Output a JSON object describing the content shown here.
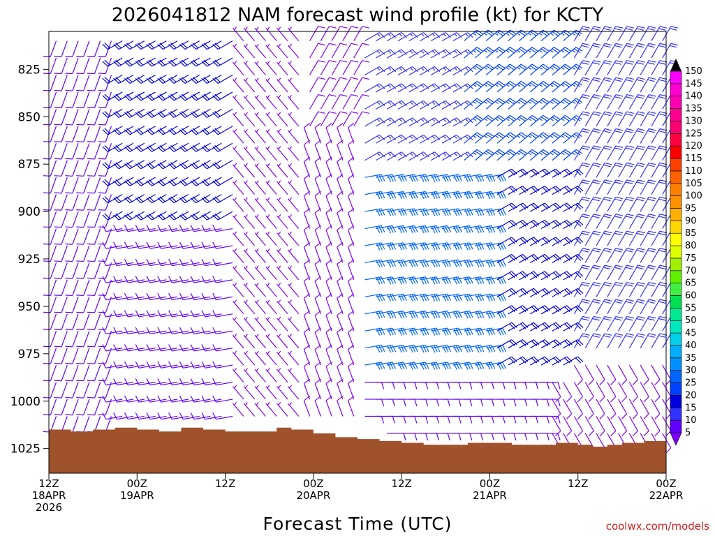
{
  "chart_data": {
    "type": "wind-barb-time-height",
    "title": "2026041812 NAM forecast wind profile (kt) for KCTY",
    "xlabel": "Forecast Time (UTC)",
    "ylabel": "",
    "y_axis": {
      "scale": "linear",
      "ticks": [
        825,
        850,
        875,
        900,
        925,
        950,
        975,
        1000,
        1025
      ],
      "range": [
        1038,
        805
      ]
    },
    "x_axis": {
      "range_hours": [
        0,
        84
      ],
      "step_hours": 3,
      "ticks": [
        {
          "h": 0,
          "lines": [
            "12Z",
            "18APR",
            "2026"
          ]
        },
        {
          "h": 12,
          "lines": [
            "00Z",
            "19APR"
          ]
        },
        {
          "h": 24,
          "lines": [
            "12Z"
          ]
        },
        {
          "h": 36,
          "lines": [
            "00Z",
            "20APR"
          ]
        },
        {
          "h": 48,
          "lines": [
            "12Z"
          ]
        },
        {
          "h": 60,
          "lines": [
            "00Z",
            "21APR"
          ]
        },
        {
          "h": 72,
          "lines": [
            "12Z"
          ]
        },
        {
          "h": 84,
          "lines": [
            "00Z",
            "22APR"
          ]
        }
      ]
    },
    "colorbar": {
      "levels": [
        5,
        10,
        15,
        20,
        25,
        30,
        35,
        40,
        45,
        50,
        55,
        60,
        65,
        70,
        75,
        80,
        85,
        90,
        95,
        100,
        105,
        110,
        115,
        120,
        125,
        130,
        135,
        140,
        145,
        150
      ],
      "colors": [
        "#8000ff",
        "#6000ff",
        "#3030ff",
        "#0000e0",
        "#0040ff",
        "#0064ff",
        "#0090ff",
        "#00b0ff",
        "#00d0e8",
        "#00e8c0",
        "#00e890",
        "#00e050",
        "#40f040",
        "#60f000",
        "#a0f000",
        "#e0ff00",
        "#ffff00",
        "#ffd800",
        "#ffb000",
        "#ff9000",
        "#ff8000",
        "#ff6000",
        "#ff4000",
        "#ff0000",
        "#ff0040",
        "#ff0070",
        "#ff0090",
        "#ff00b0",
        "#ff00d0",
        "#ff00ff"
      ]
    },
    "surface_pressure": [
      {
        "h": 0,
        "p": 1015
      },
      {
        "h": 3,
        "p": 1016
      },
      {
        "h": 6,
        "p": 1015
      },
      {
        "h": 9,
        "p": 1014
      },
      {
        "h": 12,
        "p": 1015
      },
      {
        "h": 15,
        "p": 1016
      },
      {
        "h": 18,
        "p": 1014
      },
      {
        "h": 21,
        "p": 1015
      },
      {
        "h": 24,
        "p": 1016
      },
      {
        "h": 27,
        "p": 1016
      },
      {
        "h": 30,
        "p": 1016
      },
      {
        "h": 31,
        "p": 1014
      },
      {
        "h": 33,
        "p": 1015
      },
      {
        "h": 36,
        "p": 1017
      },
      {
        "h": 39,
        "p": 1019
      },
      {
        "h": 42,
        "p": 1020
      },
      {
        "h": 45,
        "p": 1021
      },
      {
        "h": 48,
        "p": 1022
      },
      {
        "h": 51,
        "p": 1023
      },
      {
        "h": 54,
        "p": 1023
      },
      {
        "h": 57,
        "p": 1022
      },
      {
        "h": 60,
        "p": 1022
      },
      {
        "h": 63,
        "p": 1023
      },
      {
        "h": 66,
        "p": 1023
      },
      {
        "h": 69,
        "p": 1022
      },
      {
        "h": 72,
        "p": 1023
      },
      {
        "h": 74,
        "p": 1024
      },
      {
        "h": 76,
        "p": 1023
      },
      {
        "h": 78,
        "p": 1022
      },
      {
        "h": 81,
        "p": 1021
      },
      {
        "h": 84,
        "p": 1021
      }
    ],
    "surface_color": "#a0522d",
    "wind_regimes": [
      {
        "h_from": 0,
        "h_to": 9,
        "p_from": 805,
        "p_to": 1015,
        "dir_deg": 200,
        "speed_kt": 10
      },
      {
        "h_from": 9,
        "h_to": 26,
        "p_from": 805,
        "p_to": 900,
        "dir_deg": 240,
        "speed_kt": 20
      },
      {
        "h_from": 9,
        "h_to": 26,
        "p_from": 900,
        "p_to": 1015,
        "dir_deg": 260,
        "speed_kt": 12
      },
      {
        "h_from": 26,
        "h_to": 35,
        "p_from": 805,
        "p_to": 1015,
        "dir_deg": 320,
        "speed_kt": 7
      },
      {
        "h_from": 35,
        "h_to": 42,
        "p_from": 805,
        "p_to": 860,
        "dir_deg": 30,
        "speed_kt": 8
      },
      {
        "h_from": 35,
        "h_to": 42,
        "p_from": 860,
        "p_to": 1018,
        "dir_deg": 340,
        "speed_kt": 8
      },
      {
        "h_from": 42,
        "h_to": 56,
        "p_from": 805,
        "p_to": 880,
        "dir_deg": 60,
        "speed_kt": 15
      },
      {
        "h_from": 42,
        "h_to": 60,
        "p_from": 880,
        "p_to": 985,
        "dir_deg": 80,
        "speed_kt": 30
      },
      {
        "h_from": 42,
        "h_to": 68,
        "p_from": 985,
        "p_to": 1022,
        "dir_deg": 90,
        "speed_kt": 12
      },
      {
        "h_from": 56,
        "h_to": 70,
        "p_from": 805,
        "p_to": 880,
        "dir_deg": 50,
        "speed_kt": 25
      },
      {
        "h_from": 60,
        "h_to": 70,
        "p_from": 880,
        "p_to": 985,
        "dir_deg": 60,
        "speed_kt": 20
      },
      {
        "h_from": 68,
        "h_to": 84,
        "p_from": 980,
        "p_to": 1022,
        "dir_deg": 150,
        "speed_kt": 8
      },
      {
        "h_from": 70,
        "h_to": 84,
        "p_from": 805,
        "p_to": 980,
        "dir_deg": 30,
        "speed_kt": 18
      }
    ]
  },
  "watermark": "coolwx.com/models"
}
